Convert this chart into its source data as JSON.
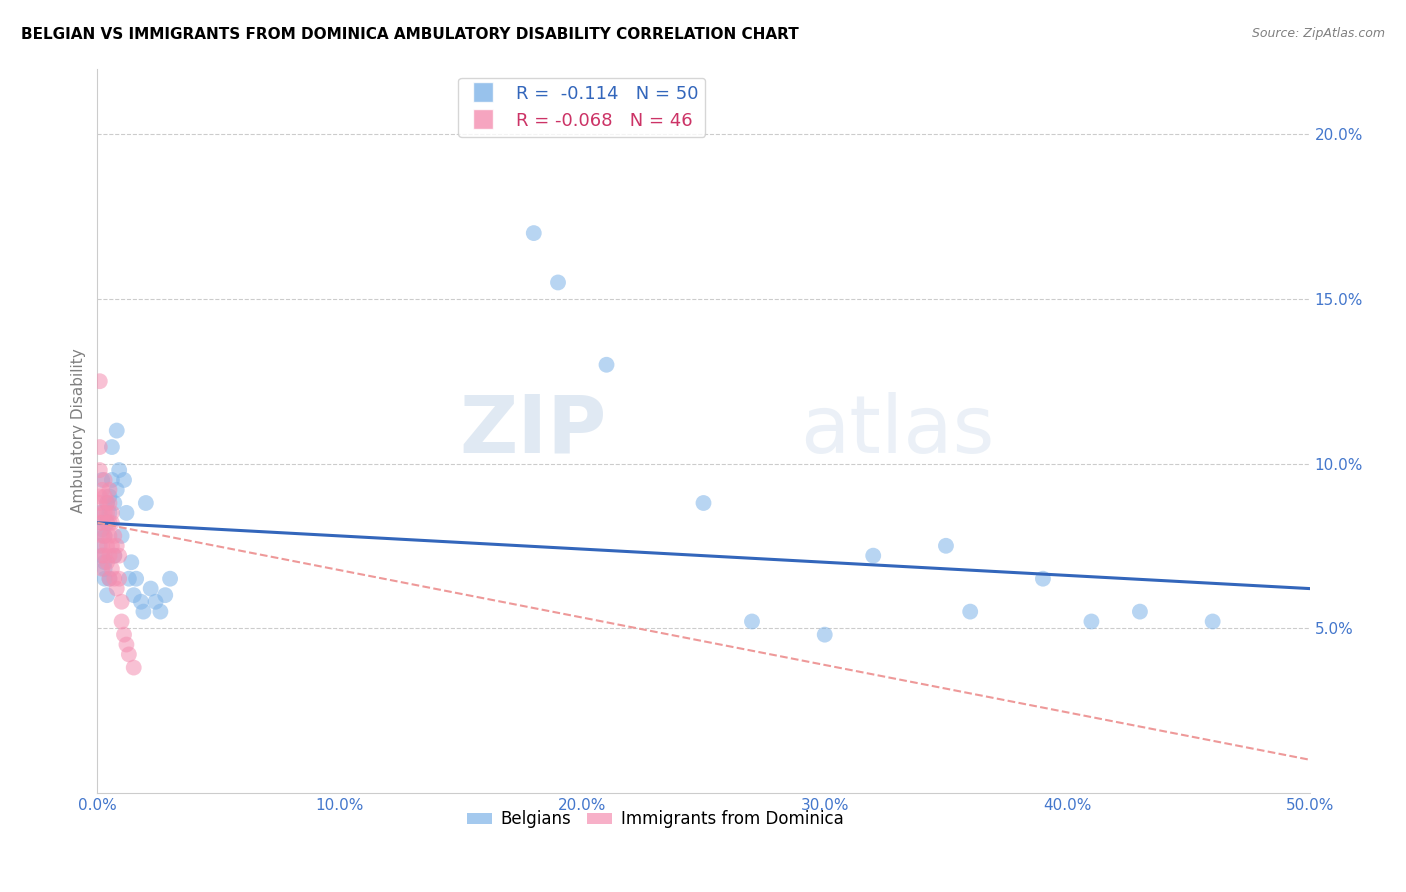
{
  "title": "BELGIAN VS IMMIGRANTS FROM DOMINICA AMBULATORY DISABILITY CORRELATION CHART",
  "source": "Source: ZipAtlas.com",
  "ylabel": "Ambulatory Disability",
  "xlim": [
    0.0,
    0.5
  ],
  "ylim": [
    0.0,
    0.22
  ],
  "yticks": [
    0.05,
    0.1,
    0.15,
    0.2
  ],
  "ytick_labels": [
    "5.0%",
    "10.0%",
    "15.0%",
    "20.0%"
  ],
  "xticks": [
    0.0,
    0.1,
    0.2,
    0.3,
    0.4,
    0.5
  ],
  "xtick_labels": [
    "0.0%",
    "10.0%",
    "20.0%",
    "30.0%",
    "40.0%",
    "50.0%"
  ],
  "legend_r_blue": "R =  -0.114",
  "legend_n_blue": "N = 50",
  "legend_r_pink": "R = -0.068",
  "legend_n_pink": "N = 46",
  "blue_color": "#7EB3E8",
  "pink_color": "#F48FB1",
  "blue_line_color": "#3366BB",
  "pink_line_color": "#EE9999",
  "watermark_zip": "ZIP",
  "watermark_atlas": "atlas",
  "background_color": "#FFFFFF",
  "belgians_x": [
    0.001,
    0.001,
    0.002,
    0.002,
    0.002,
    0.003,
    0.003,
    0.003,
    0.003,
    0.004,
    0.004,
    0.004,
    0.005,
    0.005,
    0.005,
    0.006,
    0.006,
    0.007,
    0.007,
    0.008,
    0.008,
    0.009,
    0.01,
    0.011,
    0.012,
    0.013,
    0.014,
    0.015,
    0.016,
    0.018,
    0.019,
    0.02,
    0.022,
    0.024,
    0.026,
    0.028,
    0.03,
    0.18,
    0.19,
    0.21,
    0.25,
    0.27,
    0.3,
    0.32,
    0.35,
    0.36,
    0.39,
    0.41,
    0.43,
    0.46
  ],
  "belgians_y": [
    0.085,
    0.075,
    0.08,
    0.072,
    0.095,
    0.078,
    0.07,
    0.065,
    0.068,
    0.082,
    0.088,
    0.06,
    0.09,
    0.085,
    0.065,
    0.095,
    0.105,
    0.088,
    0.072,
    0.11,
    0.092,
    0.098,
    0.078,
    0.095,
    0.085,
    0.065,
    0.07,
    0.06,
    0.065,
    0.058,
    0.055,
    0.088,
    0.062,
    0.058,
    0.055,
    0.06,
    0.065,
    0.17,
    0.155,
    0.13,
    0.088,
    0.052,
    0.048,
    0.072,
    0.075,
    0.055,
    0.065,
    0.052,
    0.055,
    0.052
  ],
  "dominica_x": [
    0.001,
    0.001,
    0.001,
    0.001,
    0.001,
    0.001,
    0.002,
    0.002,
    0.002,
    0.002,
    0.002,
    0.002,
    0.002,
    0.003,
    0.003,
    0.003,
    0.003,
    0.003,
    0.004,
    0.004,
    0.004,
    0.004,
    0.004,
    0.005,
    0.005,
    0.005,
    0.005,
    0.005,
    0.005,
    0.006,
    0.006,
    0.006,
    0.006,
    0.007,
    0.007,
    0.007,
    0.008,
    0.008,
    0.009,
    0.009,
    0.01,
    0.01,
    0.011,
    0.012,
    0.013,
    0.015
  ],
  "dominica_y": [
    0.125,
    0.105,
    0.098,
    0.09,
    0.088,
    0.082,
    0.092,
    0.085,
    0.082,
    0.078,
    0.075,
    0.072,
    0.068,
    0.095,
    0.09,
    0.085,
    0.078,
    0.072,
    0.088,
    0.085,
    0.082,
    0.075,
    0.07,
    0.092,
    0.088,
    0.082,
    0.078,
    0.072,
    0.065,
    0.085,
    0.082,
    0.075,
    0.068,
    0.078,
    0.072,
    0.065,
    0.075,
    0.062,
    0.072,
    0.065,
    0.058,
    0.052,
    0.048,
    0.045,
    0.042,
    0.038
  ],
  "blue_trendline_x": [
    0.0,
    0.5
  ],
  "blue_trendline_y": [
    0.082,
    0.062
  ],
  "pink_trendline_x": [
    0.0,
    0.5
  ],
  "pink_trendline_y": [
    0.082,
    0.01
  ]
}
